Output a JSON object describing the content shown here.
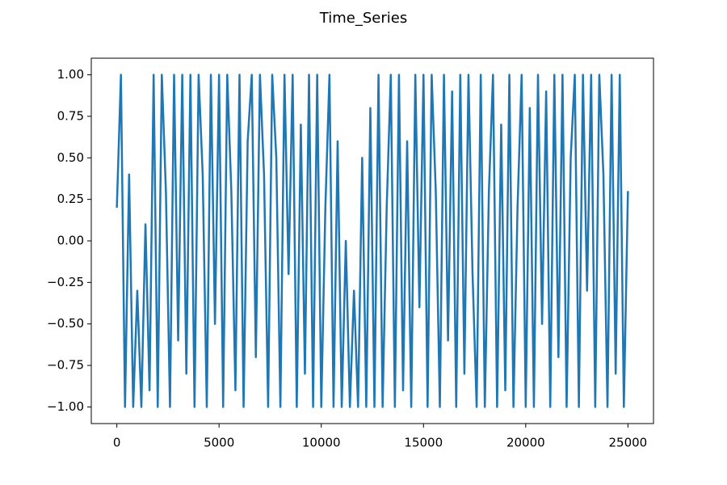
{
  "chart_data": {
    "type": "line",
    "title": "Time_Series",
    "x": [
      0,
      200,
      400,
      600,
      800,
      1000,
      1200,
      1400,
      1600,
      1800,
      2000,
      2200,
      2400,
      2600,
      2800,
      3000,
      3200,
      3400,
      3600,
      3800,
      4000,
      4200,
      4400,
      4600,
      4800,
      5000,
      5200,
      5400,
      5600,
      5800,
      6000,
      6200,
      6400,
      6600,
      6800,
      7000,
      7200,
      7400,
      7600,
      7800,
      8000,
      8200,
      8400,
      8600,
      8800,
      9000,
      9200,
      9400,
      9600,
      9800,
      10000,
      10200,
      10400,
      10600,
      10800,
      11000,
      11200,
      11400,
      11600,
      11800,
      12000,
      12200,
      12400,
      12600,
      12800,
      13000,
      13200,
      13400,
      13600,
      13800,
      14000,
      14200,
      14400,
      14600,
      14800,
      15000,
      15200,
      15400,
      15600,
      15800,
      16000,
      16200,
      16400,
      16600,
      16800,
      17000,
      17200,
      17400,
      17600,
      17800,
      18000,
      18200,
      18400,
      18600,
      18800,
      19000,
      19200,
      19400,
      19600,
      19800,
      20000,
      20200,
      20400,
      20600,
      20800,
      21000,
      21200,
      21400,
      21600,
      21800,
      22000,
      22200,
      22400,
      22600,
      22800,
      23000,
      23200,
      23400,
      23600,
      23800,
      24000,
      24200,
      24400,
      24600,
      24800,
      25000
    ],
    "values": [
      0.2,
      1,
      -1,
      0.4,
      -1,
      -0.3,
      -1,
      0.1,
      -0.9,
      1,
      -1,
      1,
      0.3,
      -1,
      1,
      -0.6,
      1,
      -0.8,
      1,
      -1,
      1,
      0.4,
      -1,
      1,
      -0.5,
      1,
      -1,
      1,
      0.3,
      -0.9,
      1,
      -1,
      0.6,
      1,
      -0.7,
      1,
      0.4,
      -1,
      1,
      0.5,
      -1,
      1,
      -0.2,
      1,
      -1,
      0.7,
      -0.8,
      1,
      -1,
      1,
      -1,
      0.2,
      1,
      -1,
      0.6,
      -1,
      0,
      -1,
      -0.3,
      -1,
      0.5,
      -1,
      0.8,
      -1,
      1,
      -1,
      0.2,
      1,
      -1,
      1,
      -0.9,
      0.6,
      -1,
      1,
      -0.4,
      1,
      -1,
      1,
      0.3,
      -1,
      1,
      -0.6,
      0.9,
      -1,
      1,
      -0.8,
      1,
      -0.2,
      -1,
      1,
      -1,
      0.3,
      1,
      -1,
      0.7,
      -0.9,
      1,
      -1,
      0.2,
      1,
      -1,
      0.8,
      -1,
      1,
      -0.5,
      0.9,
      -1,
      1,
      -0.7,
      1,
      -1,
      0.5,
      1,
      -1,
      1,
      -0.3,
      1,
      -1,
      1,
      0.4,
      -1,
      1,
      -0.8,
      1,
      -1,
      0.3
    ],
    "color": "#1f77b4",
    "xlim": [
      -1250,
      26250
    ],
    "xticks": [
      0,
      5000,
      10000,
      15000,
      20000,
      25000
    ],
    "ylim": [
      -1.1,
      1.1
    ],
    "yticks": [
      {
        "value": -1,
        "label": "−1.00"
      },
      {
        "value": -0.75,
        "label": "−0.75"
      },
      {
        "value": -0.5,
        "label": "−0.50"
      },
      {
        "value": -0.25,
        "label": "−0.25"
      },
      {
        "value": 0,
        "label": "0.00"
      },
      {
        "value": 0.25,
        "label": "0.25"
      },
      {
        "value": 0.5,
        "label": "0.50"
      },
      {
        "value": 0.75,
        "label": "0.75"
      },
      {
        "value": 1,
        "label": "1.00"
      }
    ]
  }
}
